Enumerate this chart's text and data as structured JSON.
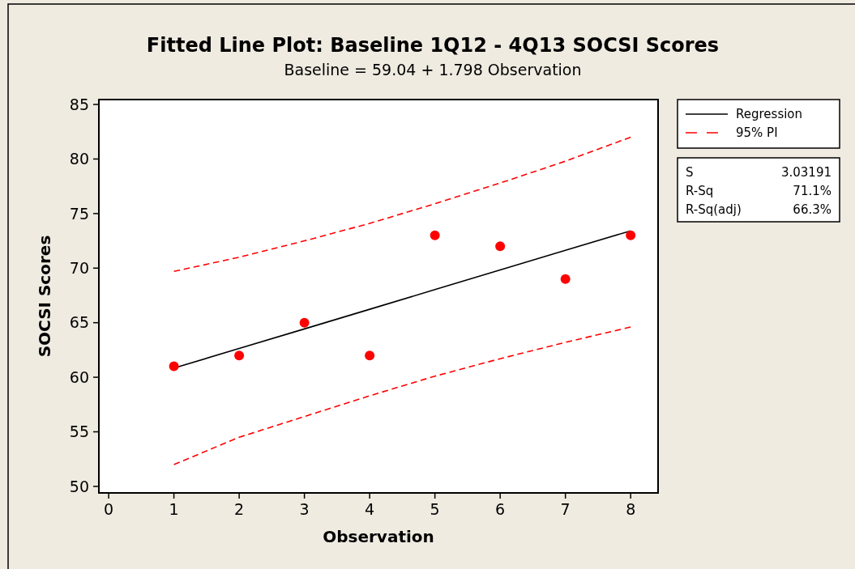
{
  "chart_data": {
    "type": "scatter",
    "title": "Fitted Line Plot:  Baseline 1Q12 - 4Q13 SOCSI Scores",
    "subtitle": "Baseline =  59.04 + 1.798 Observation",
    "xlabel": "Observation",
    "ylabel": "SOCSI Scores",
    "x": [
      1,
      2,
      3,
      4,
      5,
      6,
      7,
      8
    ],
    "series": [
      {
        "color": "#ff0000",
        "values": [
          61,
          62,
          65,
          62,
          73,
          72,
          69,
          73
        ],
        "marker": "circle"
      },
      {
        "type": "line",
        "name": "Regression",
        "color": "#000000",
        "x": [
          1,
          2,
          3,
          4,
          5,
          6,
          7,
          8
        ],
        "values": [
          60.84,
          62.64,
          64.43,
          66.23,
          68.03,
          69.83,
          71.63,
          73.42
        ],
        "line_style": "solid"
      },
      {
        "type": "line",
        "name": "95% PI",
        "color": "#ff0000",
        "x": [
          1,
          2,
          3,
          4,
          5,
          6,
          7,
          8
        ],
        "values": [
          69.7,
          71.0,
          72.5,
          74.1,
          75.9,
          77.8,
          79.8,
          82.0
        ],
        "line_style": "dashed"
      },
      {
        "type": "line",
        "color": "#ff0000",
        "x": [
          1,
          2,
          3,
          4,
          5,
          6,
          7,
          8
        ],
        "values": [
          52.0,
          54.5,
          56.4,
          58.3,
          60.1,
          61.7,
          63.2,
          64.6
        ],
        "line_style": "dashed"
      }
    ],
    "xlim": [
      -0.15,
      8.42
    ],
    "xticks": [
      0,
      1,
      2,
      3,
      4,
      5,
      6,
      7,
      8
    ],
    "ylim": [
      49.4,
      85.45
    ],
    "yticks": [
      50,
      55,
      60,
      65,
      70,
      75,
      80,
      85
    ],
    "grid": false,
    "legend": "top right",
    "annotations": [
      "S",
      "3.03191",
      "R-Sq",
      "71.1%",
      "R-Sq(adj)",
      "66.3%"
    ]
  }
}
